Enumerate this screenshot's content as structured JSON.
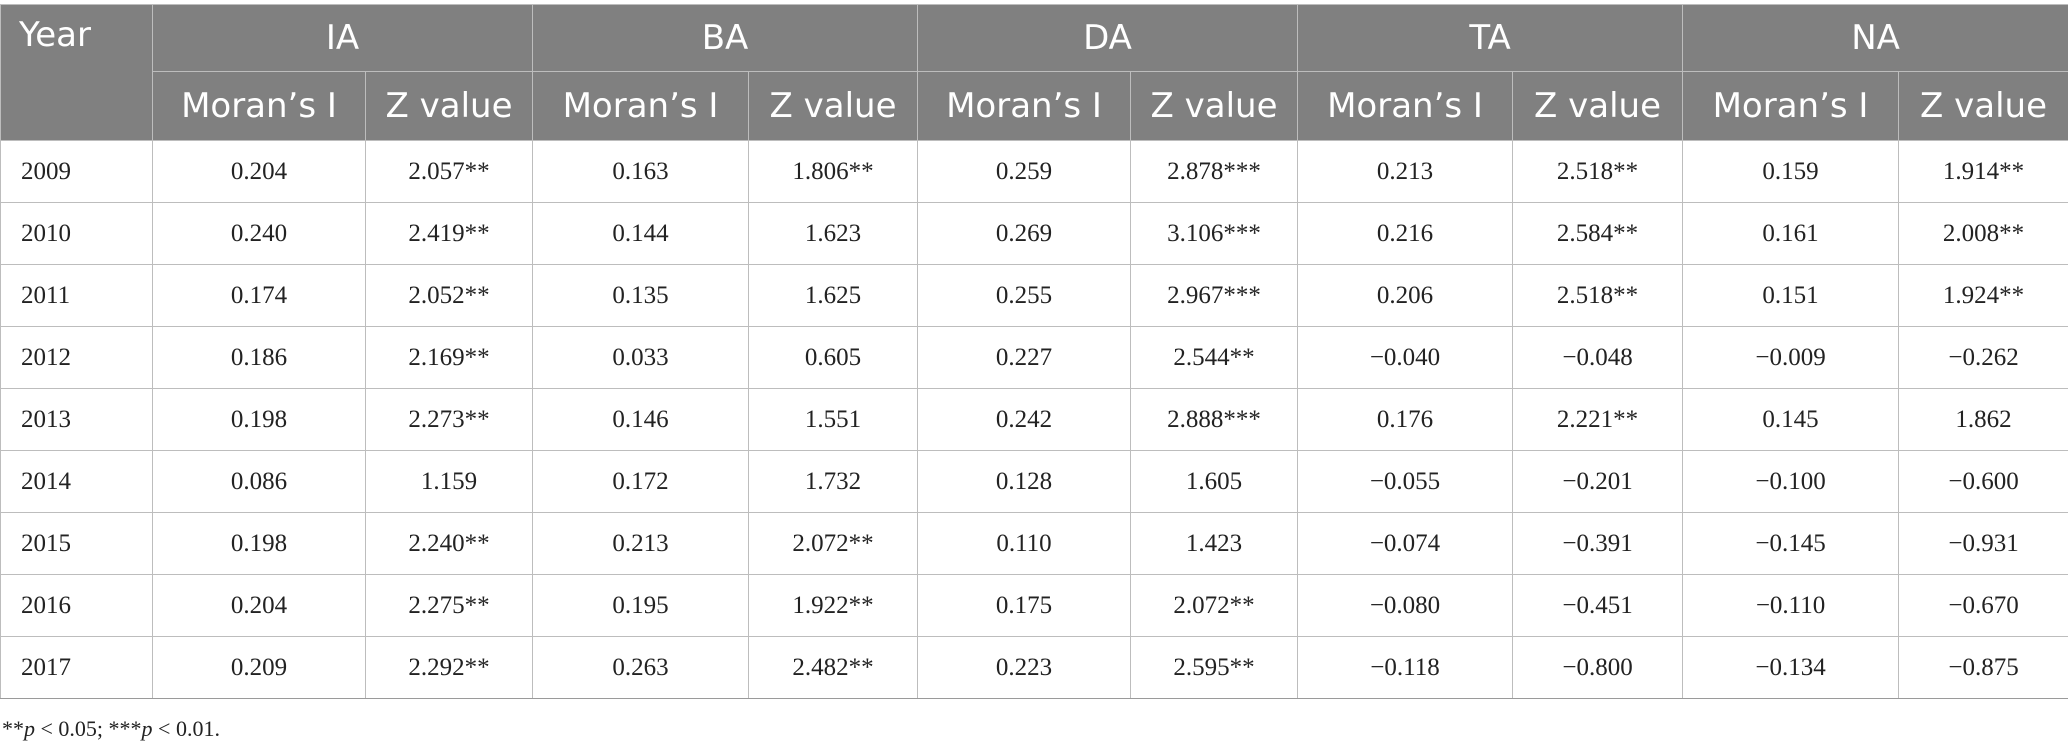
{
  "header": {
    "year": "Year",
    "groups": [
      "IA",
      "BA",
      "DA",
      "TA",
      "NA"
    ],
    "moran": "Moran’s I",
    "zvalue": "Z value"
  },
  "rows": [
    [
      "2009",
      "0.204",
      "2.057**",
      "0.163",
      "1.806**",
      "0.259",
      "2.878***",
      "0.213",
      "2.518**",
      "0.159",
      "1.914**"
    ],
    [
      "2010",
      "0.240",
      "2.419**",
      "0.144",
      "1.623",
      "0.269",
      "3.106***",
      "0.216",
      "2.584**",
      "0.161",
      "2.008**"
    ],
    [
      "2011",
      "0.174",
      "2.052**",
      "0.135",
      "1.625",
      "0.255",
      "2.967***",
      "0.206",
      "2.518**",
      "0.151",
      "1.924**"
    ],
    [
      "2012",
      "0.186",
      "2.169**",
      "0.033",
      "0.605",
      "0.227",
      "2.544**",
      "−0.040",
      "−0.048",
      "−0.009",
      "−0.262"
    ],
    [
      "2013",
      "0.198",
      "2.273**",
      "0.146",
      "1.551",
      "0.242",
      "2.888***",
      "0.176",
      "2.221**",
      "0.145",
      "1.862"
    ],
    [
      "2014",
      "0.086",
      "1.159",
      "0.172",
      "1.732",
      "0.128",
      "1.605",
      "−0.055",
      "−0.201",
      "−0.100",
      "−0.600"
    ],
    [
      "2015",
      "0.198",
      "2.240**",
      "0.213",
      "2.072**",
      "0.110",
      "1.423",
      "−0.074",
      "−0.391",
      "−0.145",
      "−0.931"
    ],
    [
      "2016",
      "0.204",
      "2.275**",
      "0.195",
      "1.922**",
      "0.175",
      "2.072**",
      "−0.080",
      "−0.451",
      "−0.110",
      "−0.670"
    ],
    [
      "2017",
      "0.209",
      "2.292**",
      "0.263",
      "2.482**",
      "0.223",
      "2.595**",
      "−0.118",
      "−0.800",
      "−0.134",
      "−0.875"
    ]
  ],
  "note": {
    "a_stars": "**",
    "a_p": "p",
    "a_rest": " < 0.05; ",
    "b_stars": "***",
    "b_p": "p",
    "b_rest": " < 0.01."
  }
}
